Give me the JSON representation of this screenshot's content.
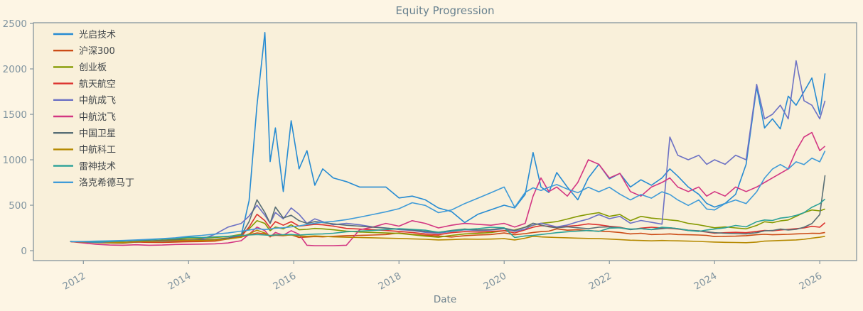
{
  "title": "Equity Progression",
  "colors": {
    "figure_bg": "#fdf5e4",
    "axes_bg": "#f9f0da",
    "spine": "#85959d",
    "tick_label": "#7f939f",
    "title_text": "#68818f",
    "axis_label_text": "#6b7f8c",
    "legend_text": "#41464a"
  },
  "chart_data": {
    "type": "line",
    "title": "Equity Progression",
    "xlabel": "Date",
    "ylabel": "",
    "grid": false,
    "legend_position": "upper-left",
    "xlim": [
      2011.05,
      2026.7
    ],
    "ylim": [
      -109,
      2508
    ],
    "x_ticks": [
      2012,
      2014,
      2016,
      2018,
      2020,
      2022,
      2024,
      2026
    ],
    "y_ticks": [
      0,
      500,
      1000,
      1500,
      2000,
      2500
    ],
    "x": [
      2011.75,
      2012,
      2012.25,
      2012.5,
      2012.75,
      2013,
      2013.25,
      2013.5,
      2013.75,
      2014,
      2014.25,
      2014.5,
      2014.75,
      2015,
      2015.15,
      2015.3,
      2015.45,
      2015.55,
      2015.65,
      2015.8,
      2015.95,
      2016.1,
      2016.25,
      2016.4,
      2016.55,
      2016.75,
      2017,
      2017.25,
      2017.5,
      2017.75,
      2018,
      2018.25,
      2018.5,
      2018.75,
      2019,
      2019.25,
      2019.5,
      2019.75,
      2020,
      2020.2,
      2020.4,
      2020.55,
      2020.7,
      2020.85,
      2021,
      2021.2,
      2021.4,
      2021.6,
      2021.8,
      2022,
      2022.2,
      2022.4,
      2022.6,
      2022.8,
      2023,
      2023.15,
      2023.3,
      2023.5,
      2023.7,
      2023.85,
      2024,
      2024.2,
      2024.4,
      2024.6,
      2024.8,
      2024.95,
      2025.1,
      2025.25,
      2025.4,
      2025.55,
      2025.7,
      2025.85,
      2026,
      2026.1
    ],
    "series": [
      {
        "name": "光启技术",
        "color": "#268bd2",
        "values": [
          100,
          95,
          90,
          92,
          88,
          95,
          100,
          98,
          105,
          110,
          115,
          122,
          135,
          165,
          550,
          1600,
          2400,
          980,
          1350,
          650,
          1430,
          900,
          1100,
          720,
          900,
          800,
          760,
          700,
          700,
          700,
          580,
          600,
          560,
          470,
          430,
          310,
          400,
          450,
          500,
          470,
          620,
          1080,
          700,
          640,
          860,
          700,
          560,
          800,
          950,
          790,
          850,
          700,
          780,
          720,
          800,
          900,
          820,
          700,
          620,
          520,
          480,
          520,
          620,
          950,
          1800,
          1350,
          1450,
          1340,
          1700,
          1600,
          1750,
          1900,
          1500,
          1950
        ]
      },
      {
        "name": "沪深300",
        "color": "#cb4b16",
        "values": [
          100,
          92,
          95,
          90,
          88,
          95,
          92,
          90,
          95,
          98,
          100,
          105,
          130,
          150,
          175,
          195,
          185,
          160,
          170,
          165,
          175,
          145,
          150,
          155,
          152,
          158,
          165,
          168,
          172,
          178,
          195,
          180,
          170,
          162,
          150,
          165,
          172,
          178,
          195,
          175,
          188,
          200,
          210,
          215,
          240,
          225,
          230,
          220,
          215,
          210,
          200,
          185,
          192,
          178,
          180,
          185,
          178,
          175,
          172,
          168,
          155,
          158,
          160,
          165,
          175,
          180,
          175,
          178,
          180,
          185,
          188,
          192,
          190,
          200
        ]
      },
      {
        "name": "创业板",
        "color": "#859900",
        "values": [
          100,
          95,
          88,
          85,
          82,
          95,
          105,
          115,
          125,
          140,
          135,
          145,
          155,
          180,
          240,
          330,
          300,
          220,
          260,
          240,
          285,
          230,
          235,
          245,
          240,
          230,
          215,
          205,
          200,
          195,
          190,
          175,
          160,
          148,
          168,
          185,
          190,
          200,
          220,
          228,
          258,
          280,
          300,
          310,
          320,
          348,
          378,
          400,
          418,
          378,
          398,
          330,
          378,
          358,
          348,
          338,
          330,
          300,
          285,
          268,
          252,
          262,
          250,
          240,
          278,
          318,
          308,
          328,
          338,
          378,
          418,
          448,
          438,
          458
        ]
      },
      {
        "name": "航天航空",
        "color": "#dc322f",
        "values": [
          100,
          94,
          90,
          92,
          88,
          96,
          100,
          98,
          104,
          108,
          112,
          118,
          130,
          155,
          260,
          400,
          330,
          250,
          320,
          280,
          320,
          270,
          280,
          290,
          285,
          270,
          245,
          238,
          230,
          222,
          212,
          200,
          185,
          175,
          198,
          210,
          205,
          212,
          220,
          195,
          230,
          258,
          275,
          268,
          258,
          268,
          278,
          295,
          285,
          268,
          258,
          232,
          248,
          258,
          250,
          245,
          238,
          222,
          215,
          205,
          192,
          198,
          202,
          198,
          212,
          222,
          218,
          228,
          235,
          242,
          250,
          268,
          258,
          308
        ]
      },
      {
        "name": "中航成飞",
        "color": "#6c71c4",
        "values": [
          100,
          96,
          92,
          95,
          90,
          98,
          102,
          100,
          108,
          115,
          125,
          180,
          260,
          300,
          380,
          500,
          390,
          300,
          420,
          350,
          470,
          400,
          300,
          350,
          320,
          285,
          300,
          285,
          262,
          250,
          232,
          222,
          202,
          192,
          212,
          230,
          222,
          228,
          242,
          212,
          238,
          282,
          302,
          282,
          262,
          282,
          318,
          348,
          398,
          352,
          378,
          302,
          332,
          312,
          292,
          1250,
          1050,
          1000,
          1050,
          950,
          1000,
          950,
          1050,
          1000,
          1830,
          1450,
          1500,
          1600,
          1450,
          2090,
          1650,
          1600,
          1450,
          1650
        ]
      },
      {
        "name": "中航沈飞",
        "color": "#d33682",
        "values": [
          100,
          85,
          70,
          62,
          60,
          65,
          60,
          62,
          68,
          70,
          72,
          75,
          85,
          110,
          180,
          260,
          220,
          150,
          200,
          170,
          220,
          180,
          60,
          55,
          55,
          55,
          60,
          230,
          260,
          300,
          270,
          330,
          300,
          250,
          280,
          300,
          290,
          280,
          300,
          260,
          300,
          600,
          800,
          650,
          700,
          600,
          750,
          1000,
          950,
          800,
          850,
          650,
          600,
          700,
          750,
          800,
          700,
          650,
          700,
          600,
          650,
          600,
          700,
          650,
          700,
          750,
          800,
          850,
          900,
          1100,
          1250,
          1300,
          1100,
          1150
        ]
      },
      {
        "name": "中国卫星",
        "color": "#586e75",
        "values": [
          100,
          98,
          102,
          100,
          105,
          110,
          108,
          112,
          118,
          122,
          120,
          125,
          140,
          170,
          320,
          560,
          420,
          300,
          480,
          360,
          390,
          330,
          300,
          320,
          310,
          295,
          280,
          270,
          258,
          248,
          238,
          228,
          212,
          202,
          222,
          238,
          228,
          232,
          248,
          222,
          258,
          302,
          282,
          262,
          252,
          262,
          252,
          242,
          258,
          262,
          252,
          232,
          242,
          232,
          242,
          252,
          242,
          225,
          218,
          208,
          198,
          192,
          188,
          185,
          198,
          218,
          222,
          238,
          228,
          235,
          258,
          298,
          398,
          830
        ]
      },
      {
        "name": "中航科工",
        "color": "#b58900",
        "values": [
          100,
          96,
          98,
          95,
          92,
          98,
          102,
          105,
          110,
          115,
          112,
          118,
          128,
          148,
          185,
          225,
          195,
          158,
          178,
          168,
          172,
          162,
          158,
          162,
          158,
          152,
          148,
          145,
          142,
          138,
          135,
          130,
          125,
          118,
          122,
          128,
          125,
          128,
          132,
          118,
          138,
          158,
          152,
          148,
          145,
          142,
          138,
          135,
          132,
          128,
          122,
          115,
          112,
          108,
          112,
          110,
          108,
          105,
          102,
          98,
          95,
          92,
          90,
          88,
          95,
          105,
          108,
          112,
          115,
          118,
          125,
          138,
          148,
          158
        ]
      },
      {
        "name": "雷神技术",
        "color": "#2aa198",
        "values": [
          100,
          98,
          95,
          100,
          105,
          115,
          120,
          128,
          135,
          148,
          145,
          152,
          158,
          168,
          172,
          178,
          172,
          168,
          172,
          175,
          178,
          172,
          178,
          182,
          185,
          192,
          208,
          215,
          222,
          232,
          242,
          235,
          225,
          202,
          218,
          232,
          242,
          258,
          252,
          145,
          162,
          168,
          178,
          188,
          198,
          208,
          215,
          222,
          212,
          248,
          252,
          238,
          242,
          232,
          258,
          252,
          242,
          222,
          212,
          228,
          238,
          252,
          278,
          262,
          318,
          338,
          332,
          358,
          368,
          388,
          418,
          478,
          518,
          568
        ]
      },
      {
        "name": "洛克希德马丁",
        "color": "#3f9bd8",
        "values": [
          100,
          102,
          105,
          108,
          112,
          118,
          125,
          132,
          142,
          158,
          168,
          182,
          195,
          215,
          228,
          242,
          232,
          238,
          248,
          252,
          262,
          272,
          288,
          302,
          312,
          322,
          342,
          368,
          398,
          428,
          462,
          528,
          498,
          418,
          448,
          518,
          578,
          638,
          700,
          478,
          642,
          692,
          662,
          698,
          728,
          678,
          638,
          698,
          648,
          698,
          622,
          558,
          618,
          578,
          648,
          618,
          558,
          498,
          558,
          458,
          448,
          518,
          558,
          518,
          648,
          798,
          898,
          948,
          898,
          978,
          948,
          1018,
          978,
          1098
        ]
      }
    ]
  }
}
